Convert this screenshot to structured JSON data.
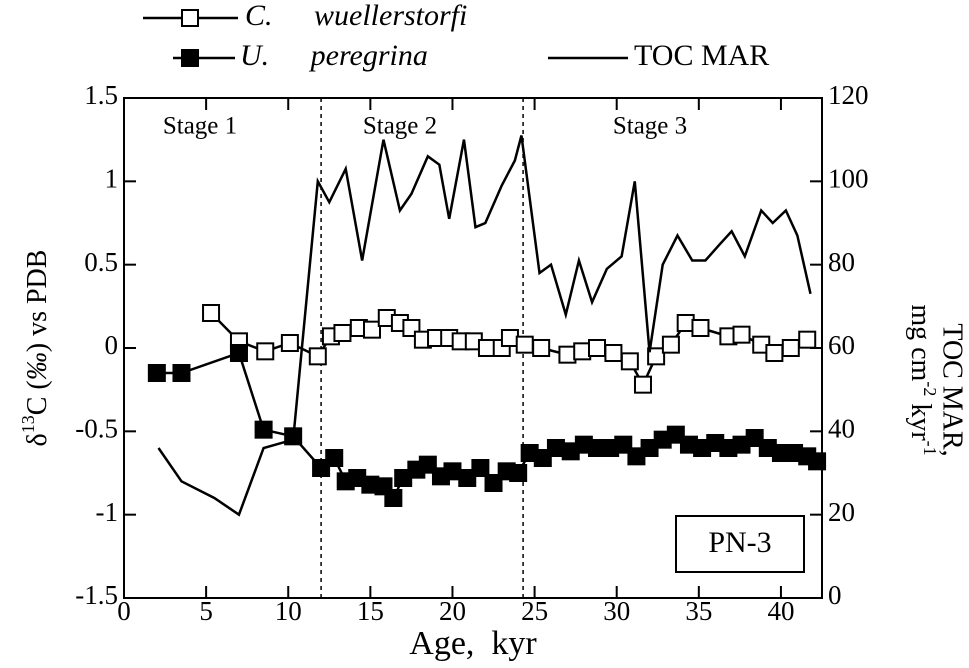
{
  "chart_data": {
    "type": "line",
    "xlabel": "Age,  kyr",
    "ylabel": [
      "δ",
      "13",
      "C (",
      "‰",
      ") vs PDB"
    ],
    "y2label": [
      "TOC MAR,",
      "mg cm",
      "-2",
      " kyr",
      "-1"
    ],
    "xlim": [
      0,
      42.5
    ],
    "xticks": [
      0,
      5,
      10,
      15,
      20,
      25,
      30,
      35,
      40
    ],
    "ylim": [
      -1.5,
      1.5
    ],
    "yticks": [
      -1.5,
      -1,
      -0.5,
      0,
      0.5,
      1,
      1.5
    ],
    "y2lim": [
      0,
      120
    ],
    "y2ticks": [
      0,
      20,
      40,
      60,
      80,
      100,
      120
    ],
    "stage_boundaries": [
      12,
      24.3
    ],
    "annotations": [
      "Stage 1",
      "Stage 2",
      "Stage 3",
      "PN-3"
    ],
    "series": [
      {
        "name": "C. wuellerstorfi",
        "color": "#000000",
        "marker": "open-square",
        "x": [
          5.3,
          7.0,
          8.6,
          10.1,
          11.8,
          12.6,
          13.3,
          14.3,
          15.1,
          16.0,
          16.8,
          17.5,
          18.2,
          19.0,
          19.8,
          20.5,
          21.3,
          22.1,
          23.0,
          23.5,
          24.4,
          25.4,
          27.0,
          27.9,
          28.8,
          29.8,
          30.8,
          31.6,
          32.4,
          33.3,
          34.2,
          35.1,
          36.8,
          37.6,
          38.8,
          39.6,
          40.6,
          41.6
        ],
        "values": [
          0.21,
          0.04,
          -0.02,
          0.03,
          -0.05,
          0.07,
          0.09,
          0.12,
          0.11,
          0.18,
          0.15,
          0.12,
          0.05,
          0.06,
          0.06,
          0.04,
          0.04,
          0.0,
          0.0,
          0.06,
          0.02,
          0.0,
          -0.04,
          -0.02,
          0.0,
          -0.03,
          -0.08,
          -0.22,
          -0.05,
          0.02,
          0.15,
          0.12,
          0.07,
          0.08,
          0.02,
          -0.03,
          0.0,
          0.05
        ]
      },
      {
        "name": "U. peregrina",
        "color": "#000000",
        "marker": "filled-square",
        "x": [
          2,
          3.5,
          7,
          8.5,
          10.3,
          12,
          12.8,
          13.5,
          14.2,
          15,
          15.8,
          16.4,
          17,
          17.8,
          18.5,
          19.3,
          20,
          20.9,
          21.7,
          22.5,
          23.3,
          24,
          24.7,
          25.5,
          26.3,
          27.2,
          28,
          28.8,
          29.6,
          30.4,
          31.2,
          32,
          32.8,
          33.6,
          34.4,
          35.2,
          36,
          36.8,
          37.6,
          38.4,
          39.2,
          40,
          40.8,
          41.6,
          42.2
        ],
        "values": [
          -0.15,
          -0.15,
          -0.03,
          -0.49,
          -0.53,
          -0.72,
          -0.66,
          -0.8,
          -0.78,
          -0.82,
          -0.83,
          -0.9,
          -0.78,
          -0.73,
          -0.7,
          -0.77,
          -0.74,
          -0.78,
          -0.72,
          -0.81,
          -0.74,
          -0.75,
          -0.63,
          -0.66,
          -0.6,
          -0.62,
          -0.58,
          -0.6,
          -0.6,
          -0.58,
          -0.65,
          -0.6,
          -0.55,
          -0.52,
          -0.58,
          -0.6,
          -0.57,
          -0.6,
          -0.58,
          -0.54,
          -0.6,
          -0.63,
          -0.63,
          -0.65,
          -0.68
        ]
      },
      {
        "name": "TOC MAR",
        "color": "#000000",
        "marker": "none",
        "axis": "y2",
        "x": [
          2.1,
          3.5,
          5.5,
          7,
          8.5,
          10.3,
          11.8,
          12.5,
          13.5,
          14.5,
          15.8,
          16.8,
          17.5,
          18.5,
          19.2,
          19.8,
          20.7,
          21.4,
          22,
          23,
          23.8,
          24.2,
          25.3,
          26,
          26.9,
          27.7,
          28.5,
          29.4,
          30.3,
          31.1,
          32,
          32.8,
          33.7,
          34.6,
          35.4,
          36.3,
          37,
          37.8,
          38.8,
          39.5,
          40.3,
          41,
          41.8
        ],
        "values": [
          36,
          28,
          24,
          20,
          36,
          38,
          100,
          95,
          103,
          81,
          110,
          93,
          97,
          106,
          104,
          91,
          110,
          89,
          90,
          99,
          105,
          111,
          78,
          80,
          68,
          81,
          71,
          79,
          82,
          100,
          59,
          80,
          87,
          81,
          81,
          85,
          88,
          82,
          93,
          90,
          93,
          87,
          73
        ]
      }
    ]
  }
}
